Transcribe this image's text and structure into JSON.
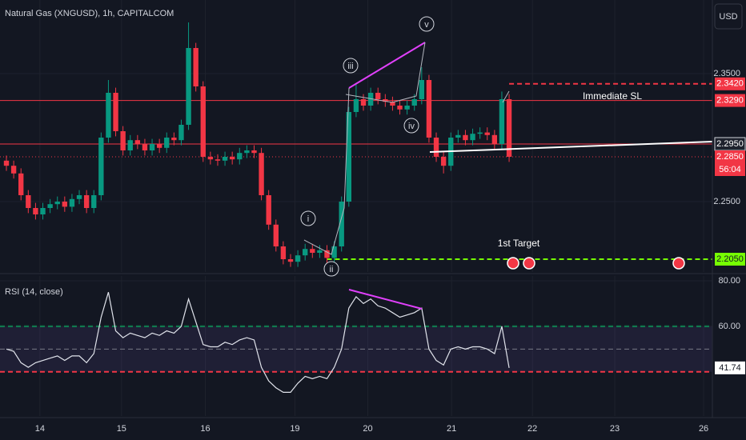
{
  "chart_data": [
    {
      "type": "candlestick",
      "title": "Natural Gas (XNGUSD), 1h, CAPITALCOM",
      "currency": "USD",
      "up_color": "#089981",
      "down_color": "#f23645",
      "open": [
        2.282,
        2.278,
        2.272,
        2.255,
        2.245,
        2.24,
        2.245,
        2.248,
        2.25,
        2.246,
        2.252,
        2.255,
        2.245,
        2.255,
        2.3,
        2.335,
        2.305,
        2.29,
        2.298,
        2.295,
        2.29,
        2.295,
        2.292,
        2.3,
        2.298,
        2.31,
        2.37,
        2.34,
        2.285,
        2.283,
        2.282,
        2.285,
        2.283,
        2.288,
        2.29,
        2.288,
        2.255,
        2.232,
        2.215,
        2.205,
        2.203,
        2.208,
        2.213,
        2.21,
        2.212,
        2.206,
        2.215,
        2.25,
        2.32,
        2.33,
        2.325,
        2.335,
        2.33,
        2.328,
        2.325,
        2.322,
        2.325,
        2.33,
        2.345,
        2.3,
        2.285,
        2.278,
        2.3,
        2.302,
        2.298,
        2.303,
        2.304,
        2.302,
        2.295,
        2.33
      ],
      "high": [
        2.286,
        2.282,
        2.276,
        2.259,
        2.249,
        2.249,
        2.252,
        2.254,
        2.254,
        2.256,
        2.259,
        2.259,
        2.259,
        2.304,
        2.345,
        2.339,
        2.309,
        2.302,
        2.302,
        2.299,
        2.299,
        2.299,
        2.304,
        2.304,
        2.314,
        2.39,
        2.374,
        2.344,
        2.289,
        2.287,
        2.289,
        2.289,
        2.292,
        2.294,
        2.294,
        2.292,
        2.259,
        2.236,
        2.219,
        2.209,
        2.212,
        2.217,
        2.217,
        2.216,
        2.216,
        2.219,
        2.254,
        2.324,
        2.342,
        2.334,
        2.339,
        2.339,
        2.334,
        2.332,
        2.329,
        2.329,
        2.334,
        2.355,
        2.349,
        2.304,
        2.289,
        2.304,
        2.306,
        2.306,
        2.307,
        2.308,
        2.308,
        2.306,
        2.336,
        2.334
      ],
      "low": [
        2.274,
        2.268,
        2.251,
        2.241,
        2.236,
        2.236,
        2.241,
        2.244,
        2.242,
        2.242,
        2.248,
        2.241,
        2.241,
        2.251,
        2.296,
        2.301,
        2.286,
        2.286,
        2.291,
        2.286,
        2.286,
        2.288,
        2.288,
        2.294,
        2.294,
        2.306,
        2.336,
        2.281,
        2.279,
        2.278,
        2.278,
        2.279,
        2.279,
        2.284,
        2.284,
        2.251,
        2.228,
        2.211,
        2.201,
        2.199,
        2.199,
        2.204,
        2.206,
        2.206,
        2.202,
        2.202,
        2.211,
        2.246,
        2.316,
        2.321,
        2.321,
        2.326,
        2.324,
        2.321,
        2.318,
        2.318,
        2.321,
        2.326,
        2.296,
        2.281,
        2.272,
        2.274,
        2.296,
        2.294,
        2.294,
        2.299,
        2.298,
        2.291,
        2.291,
        2.281
      ],
      "close": [
        2.278,
        2.272,
        2.255,
        2.245,
        2.24,
        2.245,
        2.248,
        2.25,
        2.246,
        2.252,
        2.255,
        2.245,
        2.255,
        2.3,
        2.335,
        2.305,
        2.29,
        2.298,
        2.295,
        2.29,
        2.295,
        2.292,
        2.3,
        2.298,
        2.31,
        2.37,
        2.34,
        2.285,
        2.283,
        2.282,
        2.285,
        2.283,
        2.288,
        2.29,
        2.288,
        2.255,
        2.232,
        2.215,
        2.205,
        2.203,
        2.208,
        2.213,
        2.21,
        2.212,
        2.206,
        2.215,
        2.25,
        2.32,
        2.33,
        2.325,
        2.335,
        2.33,
        2.328,
        2.325,
        2.322,
        2.325,
        2.33,
        2.345,
        2.3,
        2.285,
        2.278,
        2.3,
        2.302,
        2.298,
        2.303,
        2.304,
        2.302,
        2.295,
        2.33,
        2.285
      ],
      "xlim": [
        -0.88,
        96.9
      ],
      "xticks": [
        {
          "value": 4.6,
          "label": "14"
        },
        {
          "value": 15.8,
          "label": "15"
        },
        {
          "value": 27.3,
          "label": "16"
        },
        {
          "value": 39.6,
          "label": "19"
        },
        {
          "value": 49.6,
          "label": "20"
        },
        {
          "value": 61.1,
          "label": "21"
        },
        {
          "value": 72.2,
          "label": "22"
        },
        {
          "value": 83.5,
          "label": "23"
        },
        {
          "value": 95.7,
          "label": "26"
        }
      ],
      "ylim": [
        2.195,
        2.4075
      ],
      "yticks": [
        {
          "value": 2.35,
          "label": "2.3500"
        },
        {
          "value": 2.25,
          "label": "2.2500"
        }
      ],
      "grid": true,
      "levels": [
        {
          "value": 2.342,
          "label": "2.3420",
          "color": "#f23645",
          "box_color": "#f23645",
          "style": "dashed"
        },
        {
          "value": 2.329,
          "label": "2.3290",
          "color": "#f23645",
          "box_color": "#f23645",
          "style": "solid",
          "note": "Immediate SL"
        },
        {
          "value": 2.295,
          "label": "2.2950",
          "color": "#f23645",
          "box_color": "#1e222d",
          "style": "solid"
        },
        {
          "value": 2.285,
          "label": "2.2850",
          "color": "#f23645",
          "box_color": "#f23645",
          "style": "dotted"
        },
        {
          "value": 2.205,
          "label": "2.2050",
          "color": "#76ff03",
          "box_color": "#76ff03",
          "style": "dashed",
          "note": "1st Target"
        }
      ],
      "countdown": "56:04",
      "waves": [
        "i",
        "ii",
        "iii",
        "iv",
        "v"
      ]
    },
    {
      "type": "line",
      "title": "RSI (14, close)",
      "color": "#e0e3eb",
      "values": [
        50,
        49,
        44,
        42,
        44,
        45,
        46,
        47,
        45,
        47,
        47,
        44,
        48,
        64,
        75,
        58,
        55,
        57,
        56,
        55,
        57,
        56,
        58,
        57,
        60,
        72,
        62,
        52,
        51,
        51,
        53,
        52,
        54,
        55,
        54,
        42,
        36,
        33,
        31,
        31,
        35,
        38,
        37,
        38,
        37,
        42,
        50,
        68,
        73,
        70,
        72,
        69,
        68,
        66,
        64,
        65,
        66,
        68,
        50,
        45,
        43,
        50,
        51,
        50,
        51,
        51,
        50,
        48,
        60,
        41.74
      ],
      "ylim": [
        20.6,
        82.1
      ],
      "yticks": [
        {
          "value": 80,
          "label": "80.00"
        },
        {
          "value": 60,
          "label": "60.00"
        }
      ],
      "levels": [
        {
          "value": 60,
          "color": "#00e676"
        },
        {
          "value": 50,
          "color": "#787b86"
        },
        {
          "value": 40,
          "color": "#f23645"
        }
      ]
    }
  ]
}
